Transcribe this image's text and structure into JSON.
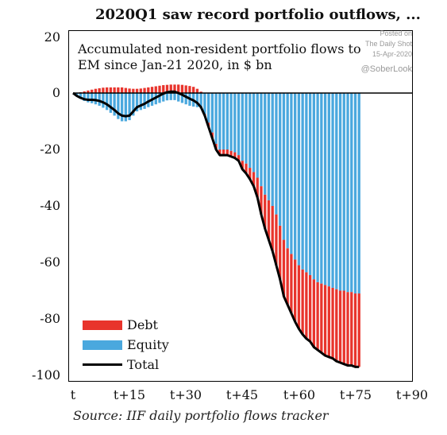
{
  "headline": "2020Q1 saw record portfolio outflows, ...",
  "watermark": {
    "line1": "Posted on",
    "line2": "The Daily Shot",
    "line3": "15-Apr-2020",
    "handle": "@SoberLook"
  },
  "source": "Source: IIF daily portfolio flows tracker",
  "colors": {
    "debt": "#e8342c",
    "equity": "#4aa8de",
    "total": "#000000"
  },
  "chart_data": {
    "type": "bar",
    "title": "Accumulated non-resident portfolio flows to EM since Jan-21 2020, in $ bn",
    "title_lines": [
      "Accumulated non-resident portfolio flows to",
      "EM since Jan-21 2020, in $ bn"
    ],
    "xlim": [
      0,
      90
    ],
    "ylim": [
      -100,
      20
    ],
    "x_ticks": [
      0,
      15,
      30,
      45,
      60,
      75,
      90
    ],
    "x_tick_labels": [
      "t",
      "t+15",
      "t+30",
      "t+45",
      "t+60",
      "t+75",
      "t+90"
    ],
    "y_ticks": [
      20,
      0,
      -20,
      -40,
      -60,
      -80,
      -100
    ],
    "y_tick_labels": [
      "20",
      "0",
      "-20",
      "-40",
      "-60",
      "-80",
      "-100"
    ],
    "legend": [
      "Debt",
      "Equity",
      "Total"
    ],
    "legend_position": "bottom-left",
    "x": [
      0,
      1,
      2,
      3,
      4,
      5,
      6,
      7,
      8,
      9,
      10,
      11,
      12,
      13,
      14,
      15,
      16,
      17,
      18,
      19,
      20,
      21,
      22,
      23,
      24,
      25,
      26,
      27,
      28,
      29,
      30,
      31,
      32,
      33,
      34,
      35,
      36,
      37,
      38,
      39,
      40,
      41,
      42,
      43,
      44,
      45,
      46,
      47,
      48,
      49,
      50,
      51,
      52,
      53,
      54,
      55,
      56,
      57,
      58,
      59,
      60,
      61,
      62,
      63,
      64,
      65,
      66,
      67,
      68,
      69,
      70,
      71,
      72,
      73,
      74,
      75,
      76
    ],
    "series": [
      {
        "name": "Debt",
        "values": [
          0,
          0,
          0.3,
          0.6,
          0.9,
          1.2,
          1.5,
          1.7,
          1.9,
          2,
          2,
          2,
          2,
          2,
          1.8,
          1.6,
          1.5,
          1.5,
          1.6,
          1.8,
          2,
          2.2,
          2.4,
          2.6,
          2.8,
          2.9,
          3,
          3,
          3,
          2.9,
          2.7,
          2.5,
          2.2,
          1.5,
          0.5,
          -0.5,
          -1.5,
          -2,
          -2,
          -2,
          -2,
          -2,
          -2,
          -2,
          -2,
          -3,
          -3.5,
          -4,
          -5,
          -7,
          -10,
          -12,
          -14,
          -16,
          -18,
          -19,
          -20,
          -20,
          -21,
          -22,
          -22.5,
          -23,
          -23.5,
          -23.5,
          -24,
          -24,
          -24.5,
          -25,
          -25,
          -25,
          -25.5,
          -25.5,
          -26,
          -26,
          -26,
          -26,
          -26
        ]
      },
      {
        "name": "Equity",
        "values": [
          0,
          -1,
          -2,
          -2.8,
          -3.3,
          -3.6,
          -4,
          -4.5,
          -5.2,
          -6,
          -7,
          -8,
          -9.2,
          -10,
          -10,
          -9.6,
          -8,
          -6.5,
          -6,
          -5.6,
          -5,
          -4.5,
          -4,
          -3.5,
          -3,
          -2.6,
          -2.5,
          -2.5,
          -3,
          -3.5,
          -4,
          -4.5,
          -4.8,
          -5,
          -5.5,
          -7.5,
          -10.5,
          -14,
          -18,
          -20,
          -20,
          -20,
          -20.5,
          -21,
          -22,
          -24,
          -25,
          -26.5,
          -28,
          -30,
          -33,
          -36,
          -38,
          -40,
          -43,
          -47,
          -52,
          -55,
          -57,
          -59,
          -61,
          -62.5,
          -63.5,
          -64.5,
          -66,
          -67,
          -67.5,
          -68,
          -68.5,
          -69,
          -69.5,
          -70,
          -70,
          -70.5,
          -70.5,
          -71,
          -71
        ]
      },
      {
        "name": "Total",
        "values": [
          0,
          -1,
          -1.7,
          -2.2,
          -2.4,
          -2.4,
          -2.5,
          -2.8,
          -3.3,
          -4,
          -5,
          -6,
          -7.2,
          -8,
          -8.2,
          -8,
          -6.5,
          -5,
          -4.4,
          -3.8,
          -3,
          -2.3,
          -1.6,
          -0.9,
          -0.2,
          0.3,
          0.5,
          0.5,
          0,
          -0.6,
          -1.3,
          -2,
          -2.6,
          -3.5,
          -5,
          -8,
          -12,
          -16,
          -20,
          -22,
          -22,
          -22,
          -22.5,
          -23,
          -24,
          -27,
          -28.5,
          -30.5,
          -33,
          -37,
          -43,
          -48,
          -52,
          -56,
          -61,
          -66,
          -72,
          -75,
          -78,
          -81,
          -83.5,
          -85.5,
          -87,
          -88,
          -90,
          -91,
          -92,
          -93,
          -93.5,
          -94,
          -95,
          -95.5,
          -96,
          -96.5,
          -96.5,
          -97,
          -97
        ]
      }
    ]
  }
}
